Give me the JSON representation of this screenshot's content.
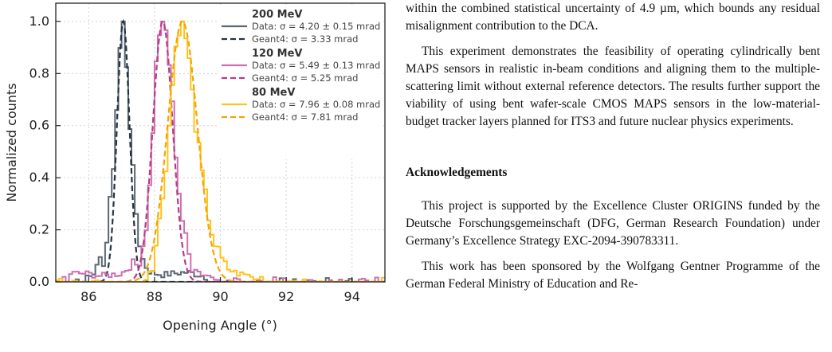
{
  "chart_data": {
    "type": "line",
    "xlabel": "Opening Angle (°)",
    "ylabel": "Normalized counts",
    "xlim": [
      85,
      95
    ],
    "ylim": [
      0,
      1.07
    ],
    "xticks": [
      "86",
      "88",
      "90",
      "92",
      "94"
    ],
    "yticks": [
      "0.0",
      "0.2",
      "0.4",
      "0.6",
      "0.8",
      "1.0"
    ],
    "grid": true,
    "legend_position": "top-right",
    "series": [
      {
        "group": "200 MeV",
        "name": "Data: σ = 4.20 ± 0.15 mrad",
        "kind": "data-histogram",
        "color": "#5a6672",
        "x": [
          85.9,
          86.1,
          86.3,
          86.5,
          86.6,
          86.7,
          86.8,
          86.9,
          87.0,
          87.05,
          87.1,
          87.2,
          87.3,
          87.4,
          87.5,
          87.6,
          87.7,
          87.8,
          88.0,
          88.3,
          88.6,
          89.0,
          89.5
        ],
        "y": [
          0.01,
          0.02,
          0.05,
          0.1,
          0.21,
          0.38,
          0.53,
          0.8,
          0.99,
          1.0,
          0.96,
          0.72,
          0.5,
          0.33,
          0.2,
          0.11,
          0.06,
          0.03,
          0.02,
          0.015,
          0.02,
          0.025,
          0.01
        ]
      },
      {
        "group": "200 MeV",
        "name": "Geant4: σ = 3.33 mrad",
        "kind": "simulation",
        "color": "#253444",
        "center": 87.05,
        "sigma_deg": 0.19
      },
      {
        "group": "120 MeV",
        "name": "Data: σ = 5.49 ± 0.13 mrad",
        "kind": "data-histogram",
        "color": "#cc6fae",
        "x": [
          85.4,
          85.9,
          86.4,
          87.0,
          87.5,
          87.7,
          87.8,
          87.9,
          88.0,
          88.1,
          88.2,
          88.3,
          88.4,
          88.5,
          88.6,
          88.7,
          88.8,
          89.0,
          89.2,
          89.4,
          89.7,
          90.0
        ],
        "y": [
          0.02,
          0.02,
          0.01,
          0.02,
          0.07,
          0.17,
          0.27,
          0.45,
          0.73,
          0.93,
          0.99,
          1.0,
          0.92,
          0.76,
          0.58,
          0.42,
          0.28,
          0.12,
          0.05,
          0.02,
          0.01,
          0.005
        ]
      },
      {
        "group": "120 MeV",
        "name": "Geant4: σ = 5.25 mrad",
        "kind": "simulation",
        "color": "#b53d87",
        "center": 88.25,
        "sigma_deg": 0.3
      },
      {
        "group": "80 MeV",
        "name": "Data: σ = 7.96 ± 0.08 mrad",
        "kind": "data-histogram",
        "color": "#ffc21e",
        "x": [
          87.8,
          88.0,
          88.2,
          88.4,
          88.5,
          88.6,
          88.7,
          88.8,
          88.9,
          89.0,
          89.1,
          89.2,
          89.3,
          89.5,
          89.7,
          89.9,
          90.2,
          90.5,
          91.0
        ],
        "y": [
          0.01,
          0.1,
          0.27,
          0.52,
          0.68,
          0.84,
          0.96,
          1.0,
          0.97,
          0.91,
          0.78,
          0.66,
          0.55,
          0.36,
          0.22,
          0.12,
          0.04,
          0.02,
          0.01
        ]
      },
      {
        "group": "80 MeV",
        "name": "Geant4: σ = 7.81 mrad",
        "kind": "simulation",
        "color": "#f5a500",
        "center": 88.85,
        "sigma_deg": 0.45
      }
    ]
  },
  "text": {
    "p1_cont": "within the combined statistical uncertainty of 4.9 µm, which bounds any residual misalignment contribution to the DCA.",
    "p2": "This experiment demonstrates the feasibility of operating cylindrically bent MAPS sensors in realistic in-beam conditions and aligning them to the multiple-scattering limit without external reference detectors. The results further support the viability of using bent wafer-scale CMOS MAPS sensors in the low-material-budget tracker layers planned for ITS3 and future nuclear physics experiments.",
    "ack_heading": "Acknowledgements",
    "ack_p1": "This project is supported by the Excellence Cluster ORIGINS funded by the Deutsche Forschungsgemeinschaft (DFG, German Research Foundation) under Germany’s Excellence Strategy EXC-2094-390783311.",
    "ack_p2": "This work has been sponsored by the Wolfgang Gentner Programme of the German Federal Ministry of Education and Re-"
  }
}
